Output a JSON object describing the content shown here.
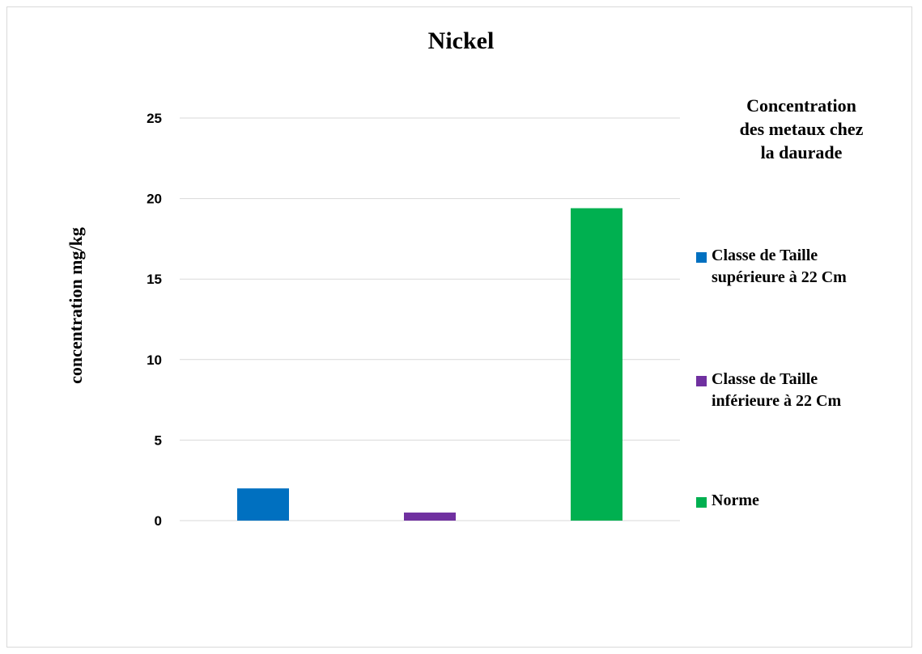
{
  "chart_data": {
    "type": "bar",
    "title": "Nickel",
    "xlabel": "",
    "ylabel": "concentration mg/kg",
    "ylim": [
      0,
      25
    ],
    "yticks": [
      0,
      5,
      10,
      15,
      20,
      25
    ],
    "grid": true,
    "legend": {
      "title": "Concentration\ndes metaux chez\nla daurade",
      "position": "right"
    },
    "series": [
      {
        "name": "Classe de Taille\nsupérieure à 22 Cm",
        "values": [
          2.0
        ],
        "color": "#0070c0"
      },
      {
        "name": "Classe de Taille\ninférieure  à 22 Cm",
        "values": [
          0.5
        ],
        "color": "#7030a0"
      },
      {
        "name": "Norme",
        "values": [
          19.4
        ],
        "color": "#00b050"
      }
    ]
  }
}
